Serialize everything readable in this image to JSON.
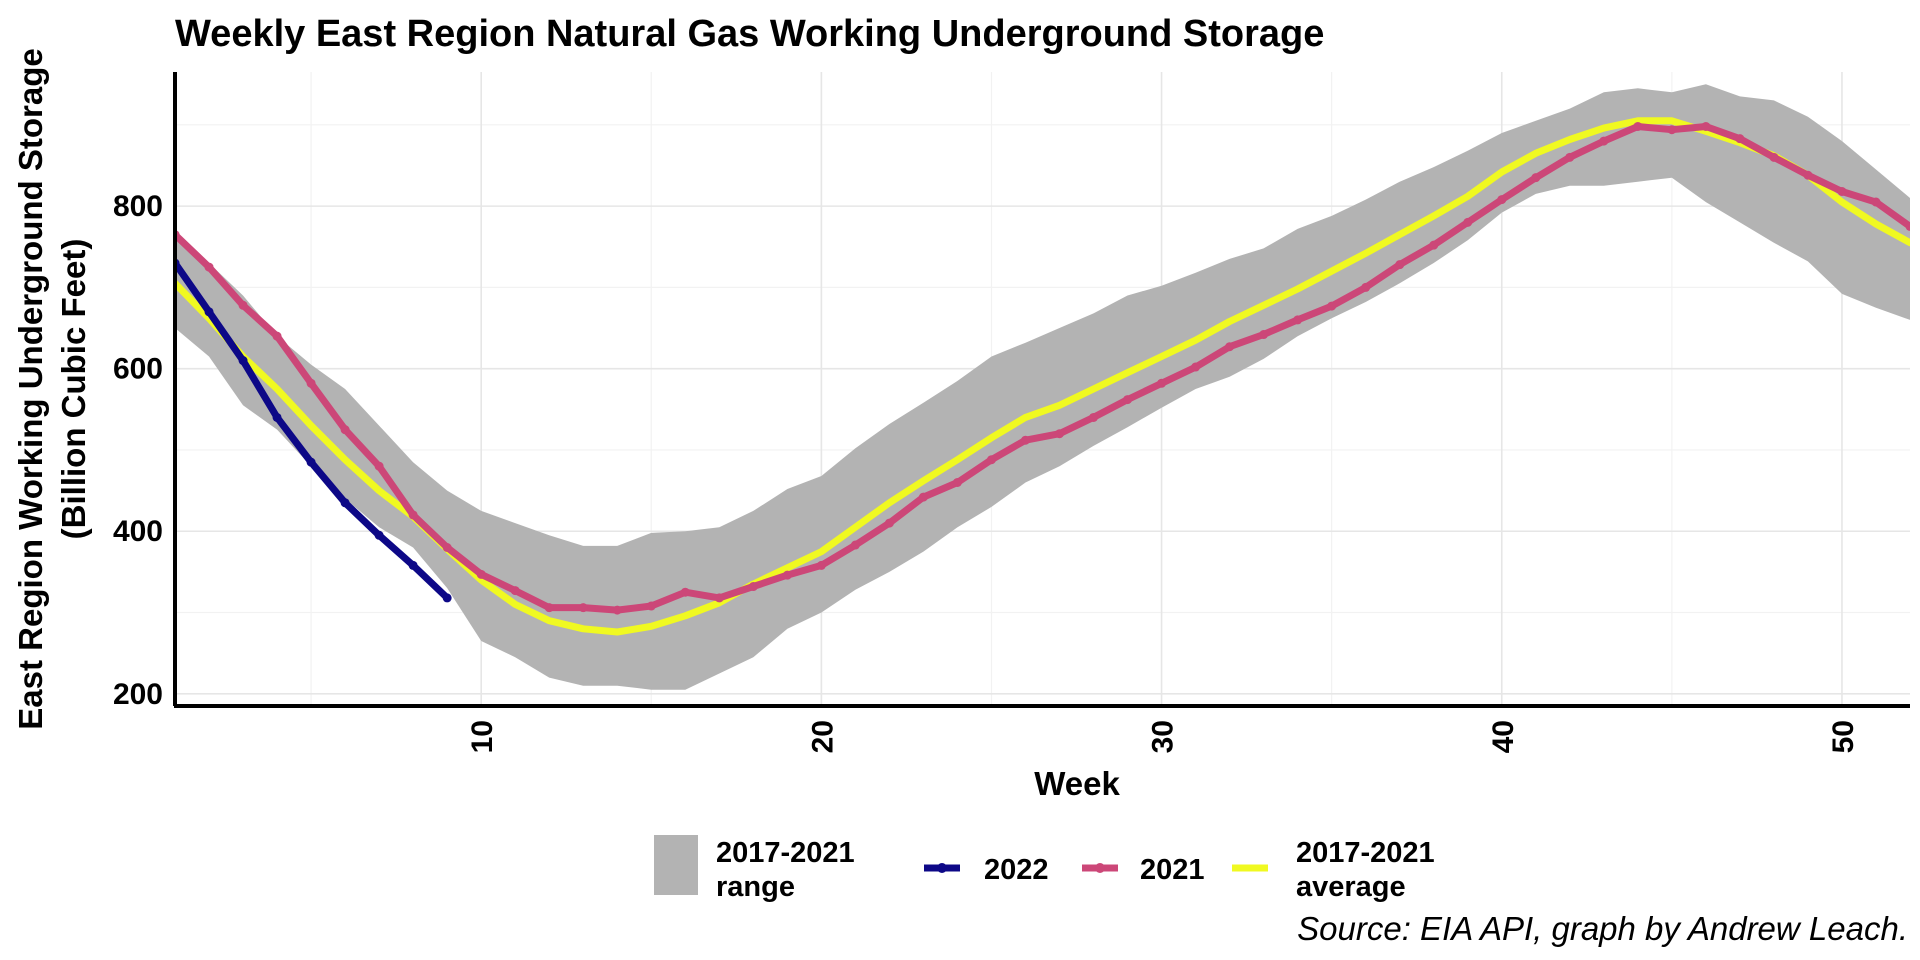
{
  "chart_data": {
    "type": "line",
    "title": "Weekly East Region Natural Gas Working Underground Storage",
    "xlabel": "Week",
    "ylabel_line1": "East Region Working Underground Storage",
    "ylabel_line2": "(Billion Cubic Feet)",
    "caption": "Source: EIA API, graph by Andrew Leach.",
    "xlim": [
      1,
      52
    ],
    "ylim": [
      185,
      965
    ],
    "x_ticks": [
      10,
      20,
      30,
      40,
      50
    ],
    "y_ticks": [
      200,
      400,
      600,
      800
    ],
    "grid": true,
    "legend_position": "bottom",
    "range": {
      "name_line1": "2017-2021",
      "name_line2": "range",
      "color": "#b3b3b3",
      "x": [
        1,
        2,
        3,
        4,
        5,
        6,
        7,
        8,
        9,
        10,
        11,
        12,
        13,
        14,
        15,
        16,
        17,
        18,
        19,
        20,
        21,
        22,
        23,
        24,
        25,
        26,
        27,
        28,
        29,
        30,
        31,
        32,
        33,
        34,
        35,
        36,
        37,
        38,
        39,
        40,
        41,
        42,
        43,
        44,
        45,
        46,
        47,
        48,
        49,
        50,
        51,
        52
      ],
      "lower": [
        650,
        615,
        555,
        525,
        480,
        440,
        405,
        380,
        330,
        265,
        245,
        220,
        210,
        210,
        205,
        205,
        225,
        245,
        280,
        300,
        328,
        350,
        375,
        405,
        430,
        460,
        480,
        505,
        528,
        552,
        575,
        590,
        612,
        640,
        662,
        682,
        705,
        730,
        758,
        792,
        815,
        825,
        825,
        830,
        835,
        805,
        780,
        755,
        732,
        692,
        675,
        660
      ],
      "upper": [
        770,
        730,
        690,
        640,
        605,
        575,
        530,
        485,
        450,
        425,
        410,
        395,
        382,
        382,
        398,
        400,
        405,
        425,
        452,
        468,
        502,
        532,
        558,
        585,
        615,
        632,
        650,
        668,
        690,
        702,
        718,
        735,
        748,
        772,
        788,
        808,
        830,
        848,
        868,
        890,
        905,
        920,
        940,
        945,
        940,
        950,
        935,
        930,
        910,
        880,
        845,
        810
      ]
    },
    "series": [
      {
        "name": "2022",
        "color": "#0d0887",
        "x": [
          1,
          2,
          3,
          4,
          5,
          6,
          7,
          8,
          9
        ],
        "values": [
          730,
          670,
          610,
          540,
          485,
          435,
          395,
          358,
          318
        ]
      },
      {
        "name": "2021",
        "color": "#cc4778",
        "x": [
          1,
          2,
          3,
          4,
          5,
          6,
          7,
          8,
          9,
          10,
          11,
          12,
          13,
          14,
          15,
          16,
          17,
          18,
          19,
          20,
          21,
          22,
          23,
          24,
          25,
          26,
          27,
          28,
          29,
          30,
          31,
          32,
          33,
          34,
          35,
          36,
          37,
          38,
          39,
          40,
          41,
          42,
          43,
          44,
          45,
          46,
          47,
          48,
          49,
          50,
          51,
          52
        ],
        "values": [
          765,
          725,
          678,
          640,
          582,
          525,
          480,
          420,
          380,
          347,
          327,
          306,
          306,
          303,
          308,
          325,
          318,
          332,
          346,
          358,
          383,
          410,
          442,
          460,
          488,
          512,
          520,
          540,
          562,
          582,
          602,
          627,
          642,
          660,
          677,
          700,
          728,
          752,
          780,
          808,
          835,
          860,
          880,
          898,
          894,
          898,
          883,
          860,
          838,
          818,
          805,
          775
        ]
      },
      {
        "name_line1": "2017-2021",
        "name_line2": "average",
        "color": "#f0f921",
        "x": [
          1,
          2,
          3,
          4,
          5,
          6,
          7,
          8,
          9,
          10,
          11,
          12,
          13,
          14,
          15,
          16,
          17,
          18,
          19,
          20,
          21,
          22,
          23,
          24,
          25,
          26,
          27,
          28,
          29,
          30,
          31,
          32,
          33,
          34,
          35,
          36,
          37,
          38,
          39,
          40,
          41,
          42,
          43,
          44,
          45,
          46,
          47,
          48,
          49,
          50,
          51,
          52
        ],
        "values": [
          705,
          662,
          615,
          575,
          530,
          488,
          450,
          418,
          378,
          340,
          310,
          290,
          280,
          276,
          283,
          296,
          312,
          335,
          355,
          375,
          405,
          435,
          462,
          488,
          515,
          540,
          555,
          575,
          595,
          615,
          635,
          658,
          678,
          698,
          720,
          742,
          765,
          788,
          812,
          842,
          865,
          882,
          896,
          905,
          905,
          892,
          878,
          862,
          838,
          805,
          778,
          755
        ]
      }
    ]
  }
}
